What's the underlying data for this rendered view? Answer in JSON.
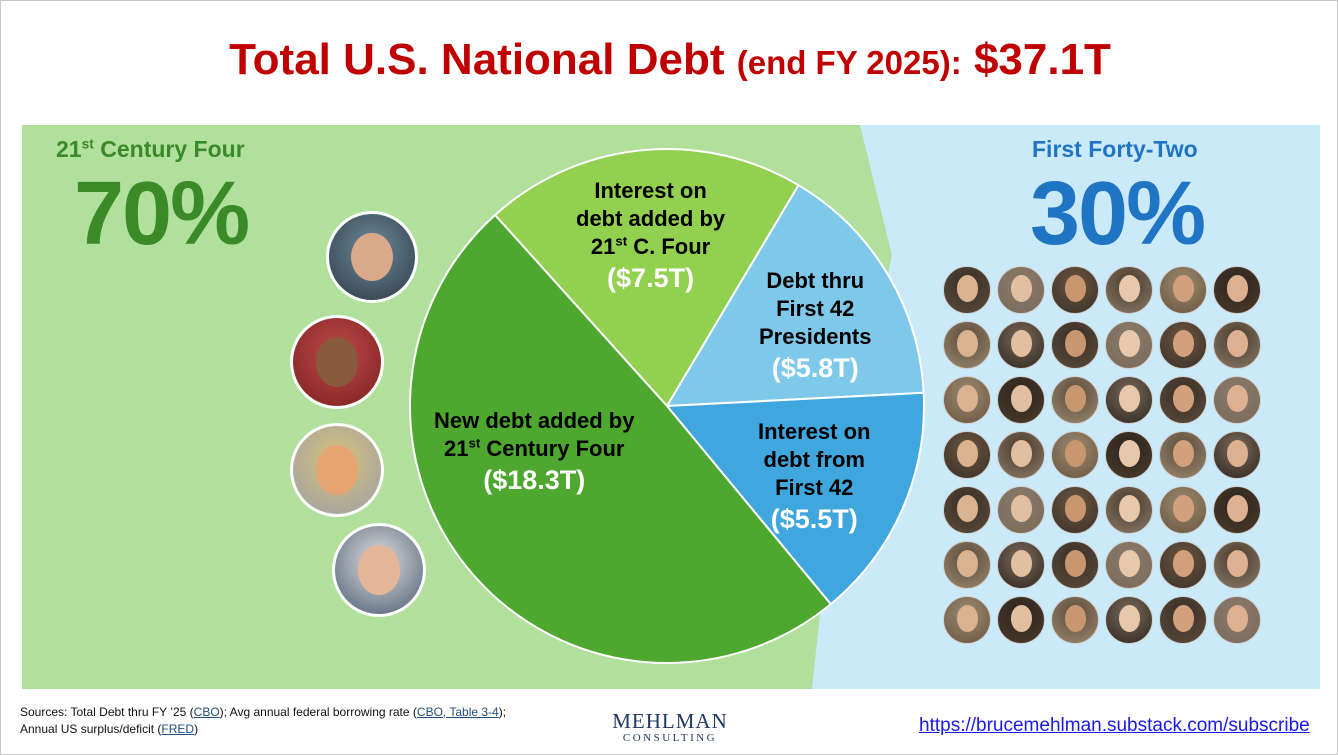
{
  "header": {
    "title_main": "Total U.S. National Debt",
    "title_sub": "(end FY 2025):",
    "title_total": "$37.1T"
  },
  "left_group": {
    "label_prefix": "21",
    "label_sup": "st",
    "label_suffix": " Century Four",
    "percent": "70%",
    "color": "#3b8a28"
  },
  "right_group": {
    "label": "First Forty-Two",
    "percent": "30%",
    "color": "#1f74c4"
  },
  "chart_data": {
    "type": "pie",
    "total_label": "$37.1T",
    "unit": "T",
    "slices": [
      {
        "lines": [
          "Interest on",
          "debt added by"
        ],
        "line3_prefix": "21",
        "line3_sup": "st",
        "line3_suffix": " C. Four",
        "amount": "($7.5T)",
        "value": 7.5,
        "color": "#92d050"
      },
      {
        "lines": [
          "Debt thru",
          "First 42",
          "Presidents"
        ],
        "amount": "($5.8T)",
        "value": 5.8,
        "color": "#7ec8ea"
      },
      {
        "lines": [
          "Interest on",
          "debt from",
          "First 42"
        ],
        "amount": "($5.5T)",
        "value": 5.5,
        "color": "#3fa6de"
      },
      {
        "lines": [
          "New debt added by"
        ],
        "line3_prefix": "21",
        "line3_sup": "st",
        "line3_suffix": " Century Four",
        "amount": "($18.3T)",
        "value": 18.3,
        "color": "#4ea72e"
      }
    ]
  },
  "footer": {
    "sources_prefix": "Sources: Total Debt thru FY ’25 (",
    "link1": "CBO",
    "sources_mid1": "); Avg annual federal borrowing rate (",
    "link2": "CBO, Table 3-4",
    "sources_mid2": ");",
    "line2_prefix": "Annual US surplus/deficit (",
    "link3": "FRED",
    "line2_suffix": ")",
    "logo_line1": "MEHLMAN",
    "logo_line2": "CONSULTING",
    "url": "https://brucemehlman.substack.com/subscribe"
  },
  "colors": {
    "title": "#c00000",
    "left_background": "#b1e09d",
    "right_background": "#cbeaf9",
    "pie_border": "#ffffff"
  }
}
